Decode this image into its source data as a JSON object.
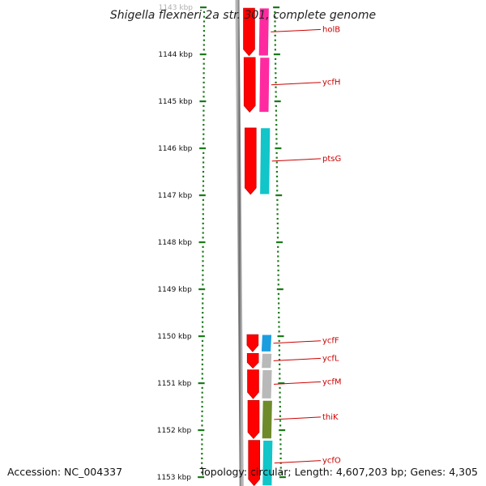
{
  "title": "Shigella flexneri 2a str. 301, complete genome",
  "footer": {
    "accession": "Accession: NC_004337",
    "topology": "Topology: circular; Length: 4,607,203 bp; Genes: 4,305"
  },
  "scale": {
    "unit": "kbp",
    "labels": [
      "1143 kbp",
      "1144 kbp",
      "1145 kbp",
      "1146 kbp",
      "1147 kbp",
      "1148 kbp",
      "1149 kbp",
      "1150 kbp",
      "1151 kbp",
      "1152 kbp",
      "1153 kbp"
    ]
  },
  "genes": [
    {
      "name": "holB",
      "start": 1143.0,
      "end": 1144.05,
      "cog_color": "#ff2aa0"
    },
    {
      "name": "ycfH",
      "start": 1144.05,
      "end": 1145.25,
      "cog_color": "#ff2aa0"
    },
    {
      "name": "ptsG",
      "start": 1145.55,
      "end": 1147.0,
      "cog_color": "#11c5c9"
    },
    {
      "name": "ycfF",
      "start": 1149.95,
      "end": 1150.35,
      "cog_color": "#1a9ee0"
    },
    {
      "name": "ycfL",
      "start": 1150.35,
      "end": 1150.7,
      "cog_color": "#b9b9b9"
    },
    {
      "name": "ycfM",
      "start": 1150.7,
      "end": 1151.35,
      "cog_color": "#b9b9b9"
    },
    {
      "name": "thiK",
      "start": 1151.35,
      "end": 1152.2,
      "cog_color": "#6f8a2a"
    },
    {
      "name": "ycfO",
      "start": 1152.2,
      "end": 1153.2,
      "cog_color": "#11c5c9"
    }
  ],
  "colors": {
    "cds": "#ff0000",
    "label_line": "#cc0000",
    "backbone": "#7a7a7a",
    "tick": "#1a7a1a"
  }
}
